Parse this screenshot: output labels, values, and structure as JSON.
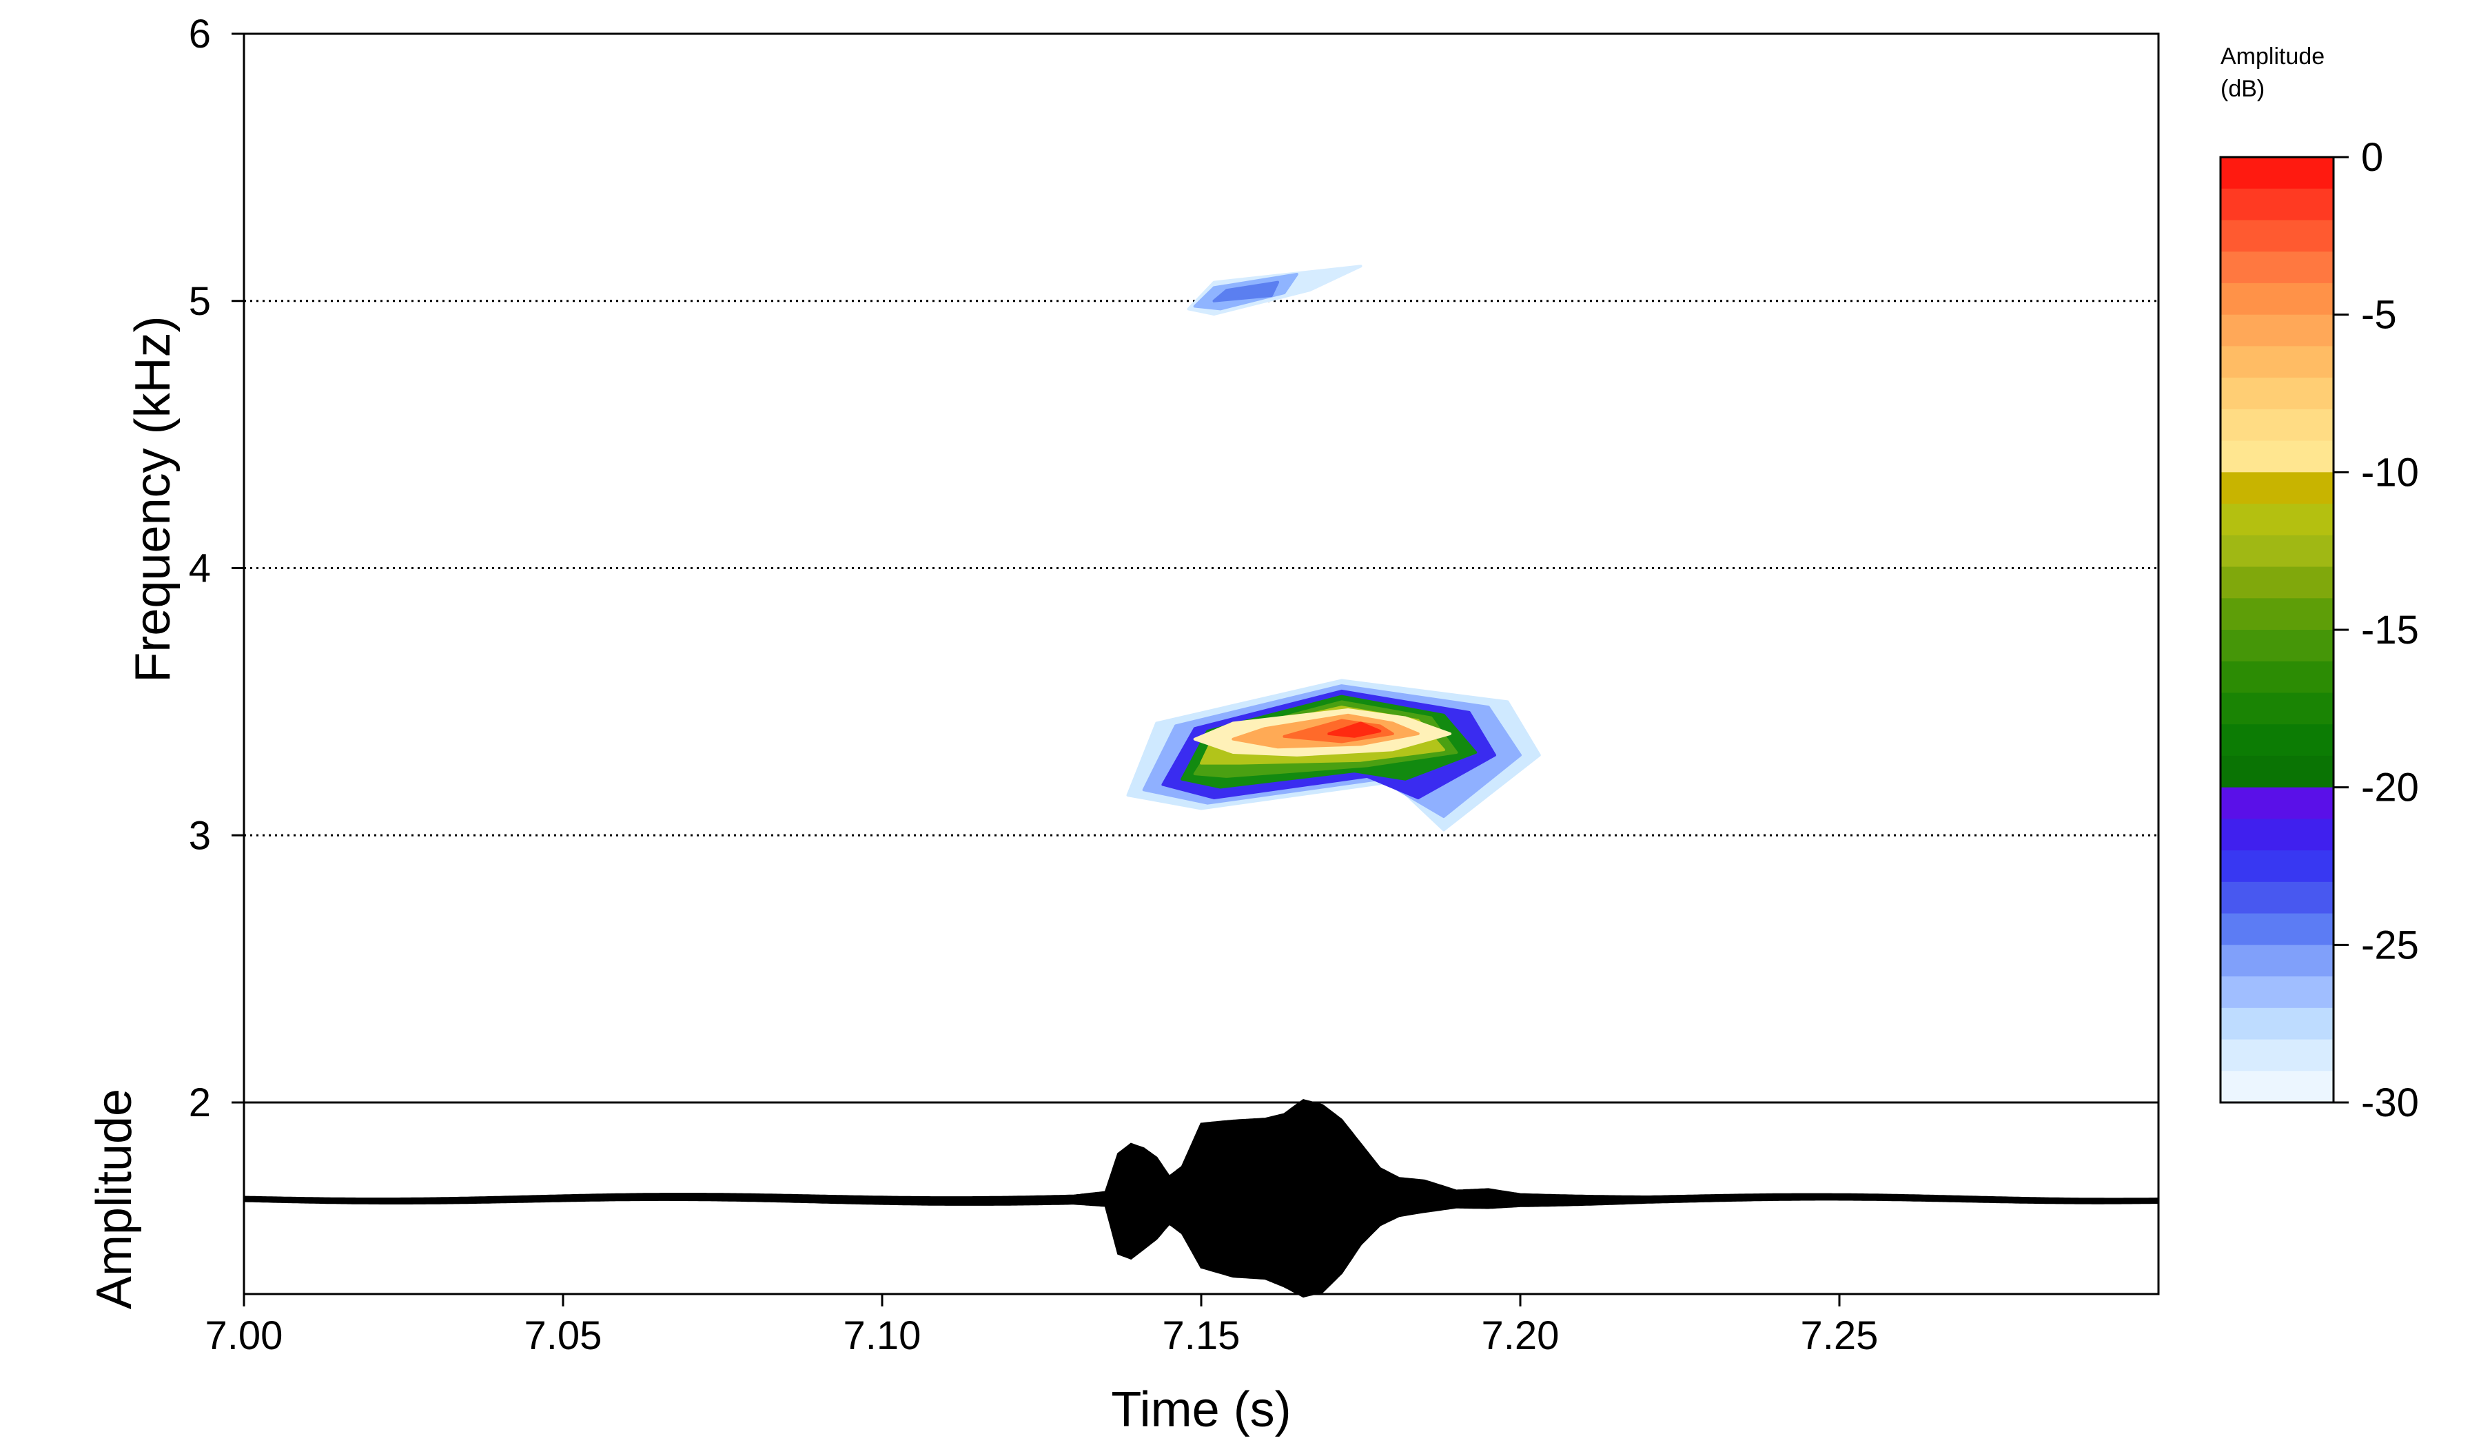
{
  "chart_data": [
    {
      "type": "heatmap",
      "panel": "spectrogram",
      "title": "",
      "xlabel": "Time (s)",
      "ylabel": "Frequency (kHz)",
      "xlim": [
        7.0,
        7.3
      ],
      "ylim": [
        2,
        6
      ],
      "x_ticks": [
        "7.00",
        "7.05",
        "7.10",
        "7.15",
        "7.20",
        "7.25"
      ],
      "y_ticks": [
        "2",
        "3",
        "4",
        "5",
        "6"
      ],
      "y_ticks_values": [
        2,
        3,
        4,
        5,
        6
      ],
      "gridlines_y": [
        3,
        4,
        5
      ],
      "grid_style": "dotted",
      "features": [
        {
          "name": "main-call",
          "layers": [
            {
              "db": -28,
              "color": "#cfe9ff",
              "points": [
                [
                  7.1385,
                  3.15
                ],
                [
                  7.143,
                  3.42
                ],
                [
                  7.172,
                  3.58
                ],
                [
                  7.198,
                  3.5
                ],
                [
                  7.203,
                  3.3
                ],
                [
                  7.188,
                  3.02
                ],
                [
                  7.18,
                  3.2
                ],
                [
                  7.15,
                  3.1
                ]
              ]
            },
            {
              "db": -25,
              "color": "#8fb0ff",
              "points": [
                [
                  7.141,
                  3.17
                ],
                [
                  7.146,
                  3.41
                ],
                [
                  7.172,
                  3.56
                ],
                [
                  7.195,
                  3.48
                ],
                [
                  7.2,
                  3.3
                ],
                [
                  7.188,
                  3.07
                ],
                [
                  7.178,
                  3.21
                ],
                [
                  7.151,
                  3.12
                ]
              ]
            },
            {
              "db": -21,
              "color": "#3a2cf0",
              "points": [
                [
                  7.144,
                  3.19
                ],
                [
                  7.149,
                  3.4
                ],
                [
                  7.172,
                  3.54
                ],
                [
                  7.192,
                  3.46
                ],
                [
                  7.196,
                  3.3
                ],
                [
                  7.184,
                  3.14
                ],
                [
                  7.176,
                  3.22
                ],
                [
                  7.152,
                  3.14
                ]
              ]
            },
            {
              "db": -18,
              "color": "#128a10",
              "points": [
                [
                  7.147,
                  3.21
                ],
                [
                  7.151,
                  3.39
                ],
                [
                  7.172,
                  3.52
                ],
                [
                  7.188,
                  3.45
                ],
                [
                  7.193,
                  3.31
                ],
                [
                  7.182,
                  3.21
                ],
                [
                  7.174,
                  3.24
                ],
                [
                  7.153,
                  3.18
                ]
              ]
            },
            {
              "db": -15,
              "color": "#4aa012",
              "points": [
                [
                  7.149,
                  3.23
                ],
                [
                  7.153,
                  3.38
                ],
                [
                  7.172,
                  3.5
                ],
                [
                  7.186,
                  3.44
                ],
                [
                  7.19,
                  3.31
                ],
                [
                  7.176,
                  3.26
                ],
                [
                  7.154,
                  3.22
                ]
              ]
            },
            {
              "db": -12,
              "color": "#b2c41a",
              "points": [
                [
                  7.15,
                  3.27
                ],
                [
                  7.152,
                  3.37
                ],
                [
                  7.172,
                  3.48
                ],
                [
                  7.184,
                  3.43
                ],
                [
                  7.188,
                  3.32
                ],
                [
                  7.175,
                  3.28
                ],
                [
                  7.156,
                  3.27
                ]
              ]
            },
            {
              "db": -9,
              "color": "#fff1b8",
              "points": [
                [
                  7.149,
                  3.36
                ],
                [
                  7.155,
                  3.42
                ],
                [
                  7.173,
                  3.47
                ],
                [
                  7.182,
                  3.44
                ],
                [
                  7.189,
                  3.38
                ],
                [
                  7.18,
                  3.32
                ],
                [
                  7.165,
                  3.3
                ],
                [
                  7.155,
                  3.31
                ]
              ]
            },
            {
              "db": -6,
              "color": "#ffaa55",
              "points": [
                [
                  7.155,
                  3.36
                ],
                [
                  7.16,
                  3.4
                ],
                [
                  7.173,
                  3.45
                ],
                [
                  7.18,
                  3.42
                ],
                [
                  7.184,
                  3.38
                ],
                [
                  7.175,
                  3.34
                ],
                [
                  7.162,
                  3.33
                ]
              ]
            },
            {
              "db": -3,
              "color": "#ff6a2a",
              "points": [
                [
                  7.163,
                  3.37
                ],
                [
                  7.172,
                  3.43
                ],
                [
                  7.178,
                  3.41
                ],
                [
                  7.18,
                  3.38
                ],
                [
                  7.172,
                  3.35
                ]
              ]
            },
            {
              "db": -1,
              "color": "#ff2a10",
              "points": [
                [
                  7.17,
                  3.38
                ],
                [
                  7.175,
                  3.42
                ],
                [
                  7.178,
                  3.39
                ],
                [
                  7.174,
                  3.37
                ]
              ]
            }
          ]
        },
        {
          "name": "harmonic",
          "layers": [
            {
              "db": -28,
              "color": "#d6ecff",
              "points": [
                [
                  7.148,
                  4.97
                ],
                [
                  7.152,
                  5.07
                ],
                [
                  7.175,
                  5.13
                ],
                [
                  7.167,
                  5.04
                ],
                [
                  7.152,
                  4.95
                ]
              ]
            },
            {
              "db": -24,
              "color": "#8fb4ff",
              "points": [
                [
                  7.149,
                  4.98
                ],
                [
                  7.152,
                  5.05
                ],
                [
                  7.165,
                  5.1
                ],
                [
                  7.163,
                  5.03
                ],
                [
                  7.153,
                  4.97
                ]
              ]
            },
            {
              "db": -22,
              "color": "#5b7ff0",
              "points": [
                [
                  7.152,
                  5.0
                ],
                [
                  7.154,
                  5.04
                ],
                [
                  7.162,
                  5.07
                ],
                [
                  7.161,
                  5.02
                ]
              ]
            }
          ]
        }
      ]
    },
    {
      "type": "line",
      "panel": "waveform",
      "title": "",
      "xlabel": "Time (s)",
      "ylabel": "Amplitude",
      "xlim": [
        7.0,
        7.3
      ],
      "baseline_style": "dashed",
      "envelope": {
        "t": [
          7.0,
          7.13,
          7.135,
          7.137,
          7.139,
          7.141,
          7.143,
          7.145,
          7.147,
          7.15,
          7.155,
          7.16,
          7.163,
          7.166,
          7.169,
          7.172,
          7.175,
          7.178,
          7.181,
          7.185,
          7.19,
          7.195,
          7.2,
          7.21,
          7.22,
          7.3
        ],
        "top": [
          0.0,
          0.02,
          0.05,
          0.45,
          0.55,
          0.5,
          0.4,
          0.2,
          0.3,
          0.75,
          0.78,
          0.8,
          0.85,
          1.0,
          0.95,
          0.8,
          0.55,
          0.3,
          0.2,
          0.18,
          0.08,
          0.1,
          0.05,
          0.03,
          0.01,
          0.0
        ],
        "bottom": [
          0.0,
          -0.02,
          -0.05,
          -0.55,
          -0.6,
          -0.5,
          -0.4,
          -0.25,
          -0.35,
          -0.7,
          -0.8,
          -0.82,
          -0.9,
          -1.0,
          -0.95,
          -0.75,
          -0.45,
          -0.25,
          -0.15,
          -0.1,
          -0.05,
          -0.05,
          -0.03,
          -0.02,
          -0.01,
          0.0
        ]
      }
    }
  ],
  "colorbar": {
    "title_line1": "Amplitude",
    "title_line2": "(dB)",
    "range": [
      -30,
      0
    ],
    "tick_values": [
      0,
      -5,
      -10,
      -15,
      -20,
      -25,
      -30
    ],
    "tick_labels": [
      "0",
      "-5",
      "-10",
      "-15",
      "-20",
      "-25",
      "-30"
    ],
    "colors_top_to_bottom": [
      "#ff1a10",
      "#ff3a22",
      "#ff5a30",
      "#ff7840",
      "#ff9248",
      "#ffa858",
      "#ffbc64",
      "#ffce74",
      "#ffdc84",
      "#ffe690",
      "#c8b400",
      "#b4c010",
      "#a0b814",
      "#80a80c",
      "#5e9e08",
      "#459608",
      "#2c8c04",
      "#1a8404",
      "#0c7c04",
      "#0a7404",
      "#5a10e8",
      "#4020ee",
      "#3838f2",
      "#4858f0",
      "#5c7cf4",
      "#80a0fa",
      "#a0beff",
      "#bedcff",
      "#d8ecff",
      "#ecf6ff"
    ]
  }
}
